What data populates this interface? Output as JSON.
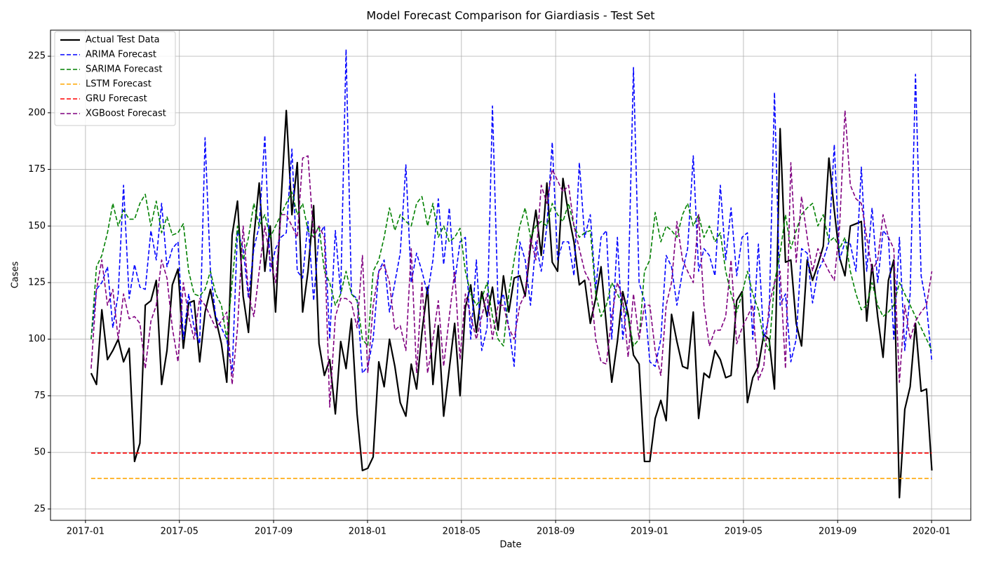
{
  "chart_data": {
    "type": "line",
    "title": "Model Forecast Comparison for Giardiasis - Test Set",
    "x_label": "Date",
    "y_label": "Cases",
    "x": [
      2017.02,
      2017.039,
      2017.058,
      2017.078,
      2017.097,
      2017.116,
      2017.135,
      2017.155,
      2017.174,
      2017.193,
      2017.212,
      2017.232,
      2017.251,
      2017.27,
      2017.289,
      2017.308,
      2017.328,
      2017.347,
      2017.366,
      2017.385,
      2017.405,
      2017.424,
      2017.443,
      2017.462,
      2017.482,
      2017.501,
      2017.52,
      2017.539,
      2017.559,
      2017.578,
      2017.597,
      2017.616,
      2017.636,
      2017.655,
      2017.674,
      2017.693,
      2017.712,
      2017.732,
      2017.751,
      2017.77,
      2017.789,
      2017.809,
      2017.828,
      2017.847,
      2017.866,
      2017.886,
      2017.905,
      2017.924,
      2017.943,
      2017.963,
      2017.982,
      2018.001,
      2018.02,
      2018.04,
      2018.059,
      2018.078,
      2018.097,
      2018.116,
      2018.136,
      2018.155,
      2018.174,
      2018.193,
      2018.213,
      2018.232,
      2018.251,
      2018.27,
      2018.29,
      2018.309,
      2018.328,
      2018.347,
      2018.366,
      2018.386,
      2018.405,
      2018.424,
      2018.443,
      2018.463,
      2018.482,
      2018.501,
      2018.52,
      2018.54,
      2018.559,
      2018.578,
      2018.597,
      2018.616,
      2018.636,
      2018.655,
      2018.674,
      2018.693,
      2018.713,
      2018.732,
      2018.751,
      2018.77,
      2018.79,
      2018.809,
      2018.828,
      2018.847,
      2018.866,
      2018.886,
      2018.905,
      2018.924,
      2018.943,
      2018.963,
      2018.982,
      2019.001,
      2019.02,
      2019.04,
      2019.059,
      2019.078,
      2019.097,
      2019.117,
      2019.135,
      2019.155,
      2019.174,
      2019.193,
      2019.212,
      2019.232,
      2019.251,
      2019.27,
      2019.289,
      2019.309,
      2019.328,
      2019.347,
      2019.366,
      2019.386,
      2019.405,
      2019.424,
      2019.443,
      2019.463,
      2019.482,
      2019.501,
      2019.52,
      2019.539,
      2019.559,
      2019.578,
      2019.597,
      2019.616,
      2019.636,
      2019.655,
      2019.674,
      2019.693,
      2019.712,
      2019.732,
      2019.751,
      2019.77,
      2019.789,
      2019.809,
      2019.828,
      2019.847,
      2019.866,
      2019.886,
      2019.905,
      2019.924,
      2019.943,
      2019.963,
      2019.982,
      2020.001
    ],
    "series": [
      {
        "name": "Actual Test Data",
        "color": "#000000",
        "linestyle": "solid",
        "values": [
          85,
          80,
          113,
          91,
          95,
          100,
          90,
          96,
          46,
          54,
          115,
          117,
          126,
          80,
          95,
          124,
          131,
          96,
          116,
          117,
          90,
          112,
          122,
          109,
          98,
          81,
          146,
          161,
          119,
          103,
          145,
          169,
          130,
          150,
          112,
          160,
          201,
          155,
          178,
          112,
          130,
          159,
          98,
          84,
          91,
          67,
          99,
          87,
          109,
          67,
          42,
          43,
          48,
          90,
          79,
          100,
          88,
          72,
          66,
          89,
          78,
          103,
          123,
          80,
          106,
          66,
          87,
          107,
          75,
          114,
          124,
          103,
          121,
          110,
          123,
          104,
          128,
          112,
          127,
          128,
          119,
          141,
          157,
          137,
          169,
          134,
          130,
          171,
          155,
          143,
          124,
          126,
          107,
          118,
          132,
          106,
          81,
          99,
          121,
          111,
          93,
          89,
          46,
          46,
          65,
          73,
          64,
          111,
          99,
          88,
          87,
          112,
          65,
          85,
          83,
          95,
          91,
          83,
          84,
          117,
          121,
          72,
          83,
          88,
          102,
          100,
          78,
          193,
          134,
          135,
          107,
          97,
          135,
          126,
          133,
          141,
          180,
          157,
          136,
          128,
          150,
          151,
          152,
          108,
          133,
          110,
          92,
          126,
          135,
          30,
          69,
          79,
          107,
          77,
          78,
          42
        ]
      },
      {
        "name": "ARIMA Forecast",
        "color": "#0000ff",
        "linestyle": "dashed",
        "values": [
          100,
          122,
          125,
          132,
          105,
          120,
          168,
          118,
          133,
          123,
          122,
          148,
          135,
          160,
          132,
          140,
          143,
          100,
          120,
          105,
          98,
          189,
          130,
          110,
          105,
          100,
          85,
          148,
          140,
          118,
          140,
          150,
          190,
          130,
          140,
          145,
          147,
          184,
          130,
          127,
          152,
          117,
          146,
          150,
          100,
          148,
          120,
          228,
          120,
          118,
          85,
          88,
          100,
          130,
          135,
          112,
          125,
          138,
          177,
          125,
          138,
          130,
          120,
          135,
          162,
          133,
          158,
          125,
          143,
          145,
          100,
          135,
          95,
          105,
          203,
          115,
          120,
          105,
          88,
          143,
          135,
          115,
          143,
          130,
          150,
          187,
          135,
          143,
          143,
          128,
          178,
          145,
          155,
          122,
          145,
          148,
          100,
          145,
          100,
          120,
          220,
          125,
          117,
          90,
          88,
          100,
          137,
          132,
          115,
          130,
          140,
          181,
          130,
          140,
          137,
          128,
          168,
          135,
          158,
          128,
          145,
          147,
          100,
          142,
          100,
          110,
          209,
          115,
          120,
          90,
          100,
          140,
          138,
          116,
          130,
          135,
          143,
          186,
          135,
          143,
          142,
          130,
          176,
          130,
          158,
          125,
          148,
          145,
          100,
          145,
          95,
          120,
          217,
          128,
          115,
          90
        ]
      },
      {
        "name": "SARIMA Forecast",
        "color": "#008000",
        "linestyle": "dashed",
        "values": [
          100,
          132,
          137,
          147,
          160,
          150,
          157,
          153,
          153,
          160,
          164,
          150,
          161,
          147,
          154,
          146,
          147,
          151,
          130,
          120,
          119,
          122,
          130,
          120,
          115,
          100,
          125,
          150,
          135,
          145,
          160,
          150,
          155,
          145,
          150,
          155,
          160,
          165,
          155,
          160,
          148,
          145,
          150,
          130,
          125,
          115,
          120,
          130,
          120,
          117,
          100,
          97,
          130,
          135,
          145,
          158,
          148,
          155,
          152,
          150,
          160,
          163,
          150,
          160,
          145,
          150,
          143,
          145,
          149,
          130,
          120,
          115,
          118,
          125,
          110,
          100,
          97,
          120,
          135,
          150,
          158,
          145,
          150,
          152,
          150,
          160,
          155,
          152,
          160,
          150,
          145,
          147,
          148,
          120,
          110,
          115,
          125,
          120,
          115,
          110,
          97,
          100,
          130,
          135,
          156,
          143,
          150,
          148,
          145,
          155,
          160,
          150,
          155,
          145,
          150,
          143,
          147,
          130,
          120,
          112,
          120,
          130,
          120,
          113,
          100,
          95,
          125,
          138,
          155,
          140,
          148,
          155,
          158,
          160,
          150,
          155,
          143,
          145,
          140,
          145,
          130,
          120,
          113,
          115,
          125,
          115,
          110,
          112,
          115,
          125,
          120,
          115,
          110,
          105,
          100,
          95
        ]
      },
      {
        "name": "LSTM Forecast",
        "color": "#ffa500",
        "linestyle": "dashed",
        "values": [
          38.5,
          38.5,
          38.5,
          38.5,
          38.5,
          38.5,
          38.5,
          38.5,
          38.5,
          38.5,
          38.5,
          38.5,
          38.5,
          38.5,
          38.5,
          38.5,
          38.5,
          38.5,
          38.5,
          38.5,
          38.5,
          38.5,
          38.5,
          38.5,
          38.5,
          38.5,
          38.5,
          38.5,
          38.5,
          38.5,
          38.5,
          38.5,
          38.5,
          38.5,
          38.5,
          38.5,
          38.5,
          38.5,
          38.5,
          38.5,
          38.5,
          38.5,
          38.5,
          38.5,
          38.5,
          38.5,
          38.5,
          38.5,
          38.5,
          38.5,
          38.5,
          38.5,
          38.5,
          38.5,
          38.5,
          38.5,
          38.5,
          38.5,
          38.5,
          38.5,
          38.5,
          38.5,
          38.5,
          38.5,
          38.5,
          38.5,
          38.5,
          38.5,
          38.5,
          38.5,
          38.5,
          38.5,
          38.5,
          38.5,
          38.5,
          38.5,
          38.5,
          38.5,
          38.5,
          38.5,
          38.5,
          38.5,
          38.5,
          38.5,
          38.5,
          38.5,
          38.5,
          38.5,
          38.5,
          38.5,
          38.5,
          38.5,
          38.5,
          38.5,
          38.5,
          38.5,
          38.5,
          38.5,
          38.5,
          38.5,
          38.5,
          38.5,
          38.5,
          38.5,
          38.5,
          38.5,
          38.5,
          38.5,
          38.5,
          38.5,
          38.5,
          38.5,
          38.5,
          38.5,
          38.5,
          38.5,
          38.5,
          38.5,
          38.5,
          38.5,
          38.5,
          38.5,
          38.5,
          38.5,
          38.5,
          38.5,
          38.5,
          38.5,
          38.5,
          38.5,
          38.5,
          38.5,
          38.5,
          38.5,
          38.5,
          38.5,
          38.5,
          38.5,
          38.5,
          38.5,
          38.5,
          38.5,
          38.5,
          38.5,
          38.5,
          38.5,
          38.5,
          38.5,
          38.5,
          38.5,
          38.5,
          38.5,
          38.5,
          38.5,
          38.5,
          38.5
        ]
      },
      {
        "name": "GRU Forecast",
        "color": "#ff0000",
        "linestyle": "dashed",
        "values": [
          49.7,
          49.7,
          49.7,
          49.7,
          49.7,
          49.7,
          49.7,
          49.7,
          49.7,
          49.7,
          49.7,
          49.7,
          49.7,
          49.7,
          49.7,
          49.7,
          49.7,
          49.7,
          49.7,
          49.7,
          49.7,
          49.7,
          49.7,
          49.7,
          49.7,
          49.7,
          49.7,
          49.7,
          49.7,
          49.7,
          49.7,
          49.7,
          49.7,
          49.7,
          49.7,
          49.7,
          49.7,
          49.7,
          49.7,
          49.7,
          49.7,
          49.7,
          49.7,
          49.7,
          49.7,
          49.7,
          49.7,
          49.7,
          49.7,
          49.7,
          49.7,
          49.7,
          49.7,
          49.7,
          49.7,
          49.7,
          49.7,
          49.7,
          49.7,
          49.7,
          49.7,
          49.7,
          49.7,
          49.7,
          49.7,
          49.7,
          49.7,
          49.7,
          49.7,
          49.7,
          49.7,
          49.7,
          49.7,
          49.7,
          49.7,
          49.7,
          49.7,
          49.7,
          49.7,
          49.7,
          49.7,
          49.7,
          49.7,
          49.7,
          49.7,
          49.7,
          49.7,
          49.7,
          49.7,
          49.7,
          49.7,
          49.7,
          49.7,
          49.7,
          49.7,
          49.7,
          49.7,
          49.7,
          49.7,
          49.7,
          49.7,
          49.7,
          49.7,
          49.7,
          49.7,
          49.7,
          49.7,
          49.7,
          49.7,
          49.7,
          49.7,
          49.7,
          49.7,
          49.7,
          49.7,
          49.7,
          49.7,
          49.7,
          49.7,
          49.7,
          49.7,
          49.7,
          49.7,
          49.7,
          49.7,
          49.7,
          49.7,
          49.7,
          49.7,
          49.7,
          49.7,
          49.7,
          49.7,
          49.7,
          49.7,
          49.7,
          49.7,
          49.7,
          49.7,
          49.7,
          49.7,
          49.7,
          49.7,
          49.7,
          49.7,
          49.7,
          49.7,
          49.7,
          49.7,
          49.7,
          49.7,
          49.7,
          49.7,
          49.7,
          49.7,
          49.7
        ]
      },
      {
        "name": "XGBoost Forecast",
        "color": "#800080",
        "linestyle": "dashed",
        "values": [
          87,
          122,
          135,
          115,
          122,
          100,
          120,
          109,
          110,
          107,
          87,
          108,
          115,
          135,
          127,
          105,
          90,
          125,
          110,
          100,
          118,
          115,
          110,
          105,
          108,
          112,
          80,
          105,
          150,
          120,
          110,
          130,
          150,
          135,
          125,
          155,
          155,
          150,
          145,
          180,
          181,
          145,
          150,
          145,
          70,
          110,
          118,
          118,
          116,
          105,
          137,
          85,
          115,
          130,
          133,
          125,
          104,
          106,
          95,
          140,
          85,
          125,
          85,
          100,
          117,
          88,
          110,
          130,
          91,
          120,
          110,
          100,
          110,
          120,
          100,
          115,
          115,
          105,
          100,
          115,
          120,
          145,
          135,
          168,
          160,
          175,
          170,
          165,
          168,
          150,
          140,
          130,
          125,
          100,
          90,
          89,
          110,
          125,
          118,
          92,
          120,
          100,
          115,
          115,
          95,
          84,
          115,
          125,
          152,
          135,
          130,
          125,
          155,
          115,
          97,
          104,
          104,
          110,
          135,
          98,
          105,
          110,
          115,
          82,
          88,
          115,
          125,
          130,
          87,
          178,
          134,
          163,
          145,
          130,
          140,
          135,
          130,
          126,
          150,
          201,
          168,
          162,
          160,
          145,
          130,
          135,
          155,
          145,
          140,
          81,
          115,
          100,
          108,
          112,
          115,
          130
        ]
      }
    ],
    "xlim": [
      2016.876,
      2020.139
    ],
    "xticks": [
      {
        "value": 2017.0,
        "label": "2017-01"
      },
      {
        "value": 2017.333,
        "label": "2017-05"
      },
      {
        "value": 2017.667,
        "label": "2017-09"
      },
      {
        "value": 2018.0,
        "label": "2018-01"
      },
      {
        "value": 2018.333,
        "label": "2018-05"
      },
      {
        "value": 2018.667,
        "label": "2018-09"
      },
      {
        "value": 2019.0,
        "label": "2019-01"
      },
      {
        "value": 2019.333,
        "label": "2019-05"
      },
      {
        "value": 2019.667,
        "label": "2019-09"
      },
      {
        "value": 2020.0,
        "label": "2020-01"
      }
    ],
    "ylim": [
      20,
      236.5
    ],
    "yticks": [
      25,
      50,
      75,
      100,
      125,
      150,
      175,
      200,
      225
    ],
    "grid": true,
    "legend": "upper left"
  }
}
